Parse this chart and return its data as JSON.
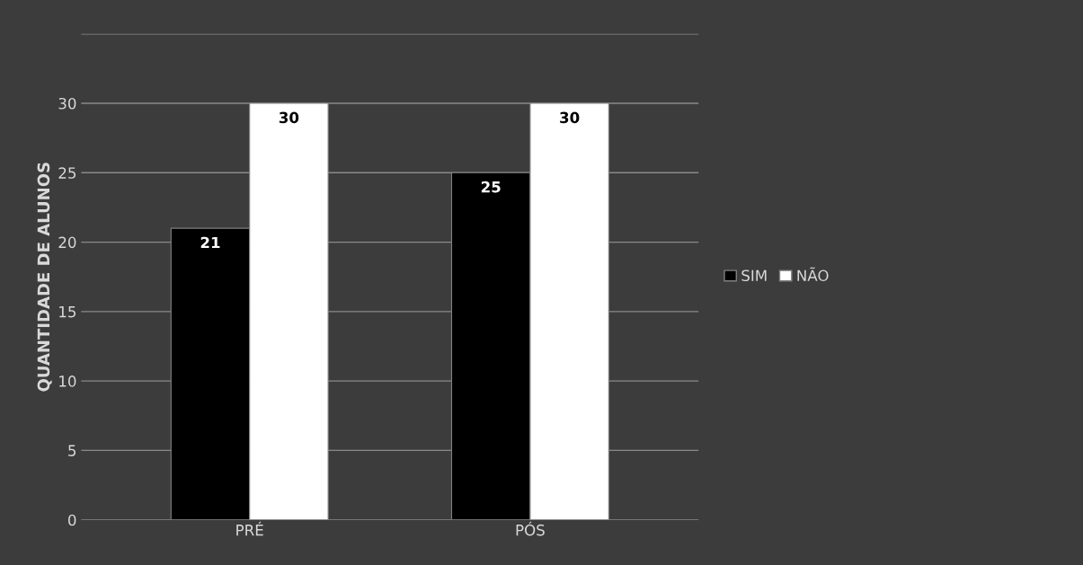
{
  "chart_data": {
    "type": "bar",
    "ylabel": "QUANTIDADE DE ALUNOS",
    "categories": [
      "PRÉ",
      "PÓS"
    ],
    "series": [
      {
        "name": "SIM",
        "color": "#000000",
        "values": [
          21,
          25
        ]
      },
      {
        "name": "NÃO",
        "color": "#ffffff",
        "values": [
          30,
          30
        ]
      }
    ],
    "ylim": [
      0,
      35
    ],
    "yticks": [
      0,
      5,
      10,
      15,
      20,
      25,
      30,
      {
        "value": 35,
        "label": null
      }
    ],
    "grid": "y",
    "legend": "right",
    "data_labels": true
  }
}
